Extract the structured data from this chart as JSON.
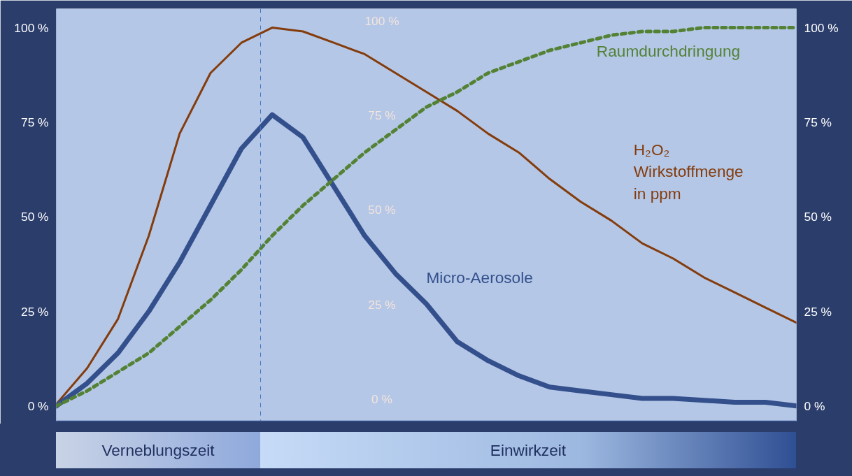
{
  "chart_data": {
    "type": "line",
    "categories": [
      null,
      null,
      null,
      null,
      null,
      null,
      null,
      null,
      null,
      null,
      null,
      null,
      null,
      null,
      null,
      null,
      null,
      null,
      null,
      null,
      null,
      null,
      null,
      null,
      null
    ],
    "series": [
      {
        "name": "H₂O₂\nWirkstoffmenge\nin ppm",
        "color": "#843c0c",
        "line_style": "solid",
        "values": [
          0.5,
          10,
          23,
          45,
          72,
          88,
          96,
          100,
          99,
          96,
          93,
          88,
          83,
          78,
          72,
          67,
          60,
          54,
          49,
          43,
          39,
          34,
          30,
          26,
          22
        ]
      },
      {
        "name": "Micro-Aerosole",
        "color": "#34508c",
        "line_style": "solid",
        "values": [
          0,
          6,
          14,
          25,
          38,
          53,
          68,
          77,
          71,
          58,
          45,
          35,
          27,
          17,
          12,
          8,
          5,
          4,
          3,
          2,
          2,
          1.5,
          1,
          1,
          0
        ]
      },
      {
        "name": "Raumdurchdringung",
        "color": "#548235",
        "line_style": "dashed",
        "values": [
          0,
          4,
          9,
          14,
          21,
          28,
          36,
          45,
          53,
          60,
          67,
          73,
          79,
          83,
          88,
          91,
          94,
          96,
          98,
          99,
          99,
          100,
          100,
          100,
          100
        ]
      }
    ],
    "ylim": [
      -4,
      105
    ],
    "yticks": [
      {
        "value": 0,
        "label": "0 %"
      },
      {
        "value": 25,
        "label": "25 %"
      },
      {
        "value": 50,
        "label": "50 %"
      },
      {
        "value": 75,
        "label": "75 %"
      },
      {
        "value": 100,
        "label": "100 %"
      }
    ],
    "y2lim": [
      -4,
      105
    ],
    "y2ticks": [
      {
        "value": 0,
        "label": "0 %"
      },
      {
        "value": 25,
        "label": "25 %"
      },
      {
        "value": 50,
        "label": "50 %"
      },
      {
        "value": 75,
        "label": "75 %"
      },
      {
        "value": 100,
        "label": "100 %"
      }
    ],
    "annotations": [
      "Verneblungszeit",
      "Einwirkzeit"
    ],
    "tick_labels": "y",
    "grid": false
  }
}
